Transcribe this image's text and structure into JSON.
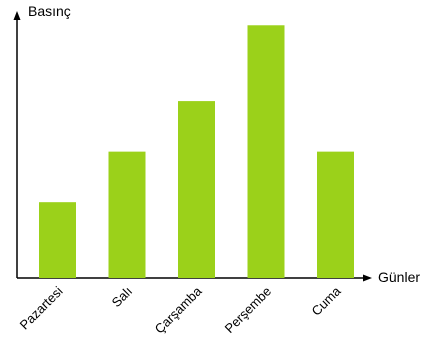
{
  "chart_data": {
    "type": "bar",
    "categories": [
      "Pazartesi",
      "Salı",
      "Çarşamba",
      "Perşembe",
      "Cuma"
    ],
    "values": [
      3,
      5,
      7,
      10,
      5
    ],
    "ylabel": "Basınç",
    "xlabel": "Günler",
    "ylim": [
      0,
      11
    ],
    "grid": false,
    "legend": "none",
    "bar_color": "#9bd11a"
  }
}
